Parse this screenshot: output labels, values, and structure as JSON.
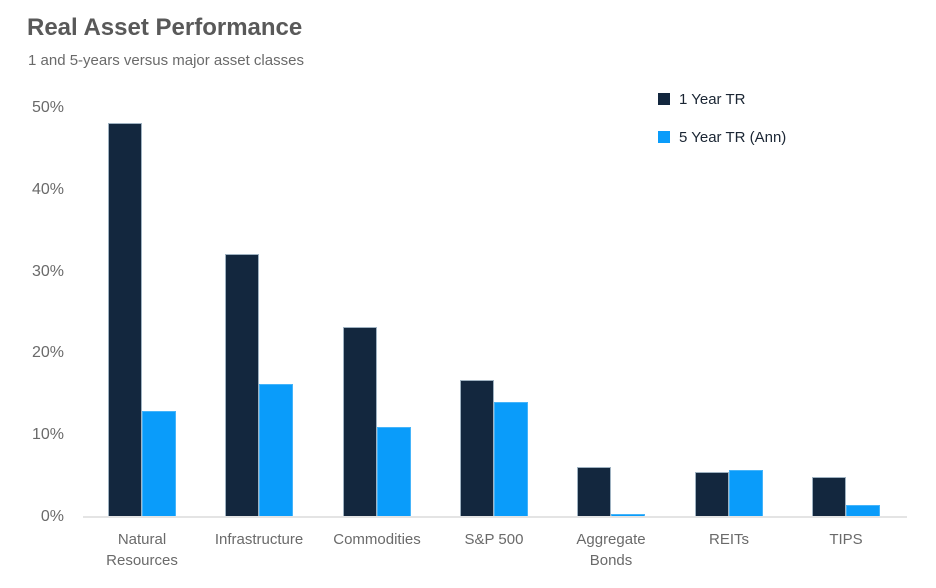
{
  "header": {
    "title": "Real Asset Performance",
    "subtitle": "1 and 5-years versus major asset classes"
  },
  "legend": {
    "items": [
      {
        "label": "1 Year TR",
        "color": "#13273e"
      },
      {
        "label": "5 Year TR (Ann)",
        "color": "#0a9cfa"
      }
    ]
  },
  "chart_data": {
    "type": "bar",
    "title": "Real Asset Performance",
    "subtitle": "1 and 5-years versus major asset classes",
    "categories": [
      "Natural Resources",
      "Infrastructure",
      "Commodities",
      "S&P 500",
      "Aggregate Bonds",
      "REITs",
      "TIPS"
    ],
    "series": [
      {
        "name": "1 Year TR",
        "color": "#13273e",
        "values": [
          48.2,
          32.1,
          23.2,
          16.8,
          6.1,
          5.5,
          4.9
        ]
      },
      {
        "name": "5 Year TR (Ann)",
        "color": "#0a9cfa",
        "values": [
          13.0,
          16.2,
          11.0,
          14.0,
          0.4,
          5.7,
          1.5
        ]
      }
    ],
    "unit": "%",
    "xlabel": "",
    "ylabel": "",
    "ylim": [
      0,
      50
    ],
    "y_tick_labels": [
      "50%",
      "40%",
      "30%",
      "20%",
      "10%",
      "0%"
    ],
    "y_tick_values": [
      50,
      40,
      30,
      20,
      10,
      0
    ],
    "grid": false,
    "legend_position": "top-right",
    "background_color": "#ffffff"
  }
}
